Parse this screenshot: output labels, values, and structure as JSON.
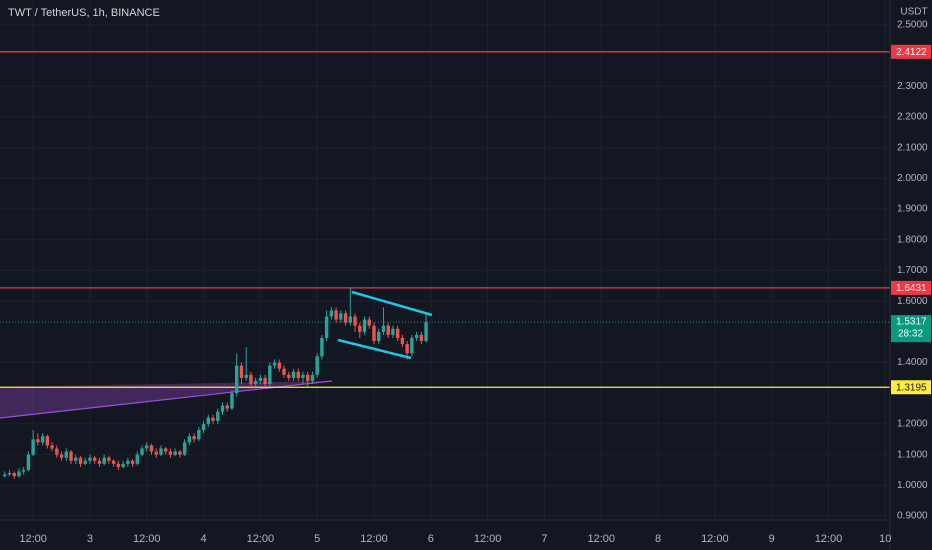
{
  "chart_data": {
    "type": "candlestick",
    "title": "TWT / TetherUS, 1h, BINANCE",
    "currency": "USDT",
    "up_color": "#26a69a",
    "down_color": "#ef5350",
    "grid": true,
    "xlim": [
      5,
      193
    ],
    "ylim": [
      0.887,
      2.581
    ],
    "xticks": [
      {
        "value": 12,
        "label": "12:00"
      },
      {
        "value": 24,
        "label": "3"
      },
      {
        "value": 36,
        "label": "12:00"
      },
      {
        "value": 48,
        "label": "4"
      },
      {
        "value": 60,
        "label": "12:00"
      },
      {
        "value": 72,
        "label": "5"
      },
      {
        "value": 84,
        "label": "12:00"
      },
      {
        "value": 96,
        "label": "6"
      },
      {
        "value": 108,
        "label": "12:00"
      },
      {
        "value": 120,
        "label": "7"
      },
      {
        "value": 132,
        "label": "12:00"
      },
      {
        "value": 144,
        "label": "8"
      },
      {
        "value": 156,
        "label": "12:00"
      },
      {
        "value": 168,
        "label": "9"
      },
      {
        "value": 180,
        "label": "12:00"
      },
      {
        "value": 192,
        "label": "10"
      }
    ],
    "yticks": [
      {
        "value": 2.5,
        "label": "2.5000"
      },
      {
        "value": 2.3,
        "label": "2.3000"
      },
      {
        "value": 2.2,
        "label": "2.2000"
      },
      {
        "value": 2.1,
        "label": "2.1000"
      },
      {
        "value": 2.0,
        "label": "2.0000"
      },
      {
        "value": 1.9,
        "label": "1.9000"
      },
      {
        "value": 1.8,
        "label": "1.8000"
      },
      {
        "value": 1.7,
        "label": "1.7000"
      },
      {
        "value": 1.6,
        "label": "1.6000"
      },
      {
        "value": 1.4,
        "label": "1.4000"
      },
      {
        "value": 1.2,
        "label": "1.2000"
      },
      {
        "value": 1.1,
        "label": "1.1000"
      },
      {
        "value": 1.0,
        "label": "1.0000"
      },
      {
        "value": 0.9,
        "label": "0.9000"
      }
    ],
    "x": [
      6,
      7,
      8,
      9,
      10,
      11,
      12,
      13,
      14,
      15,
      16,
      17,
      18,
      19,
      20,
      21,
      22,
      23,
      24,
      25,
      26,
      27,
      28,
      29,
      30,
      31,
      32,
      33,
      34,
      35,
      36,
      37,
      38,
      39,
      40,
      41,
      42,
      43,
      44,
      45,
      46,
      47,
      48,
      49,
      50,
      51,
      52,
      53,
      54,
      55,
      56,
      57,
      58,
      59,
      60,
      61,
      62,
      63,
      64,
      65,
      66,
      67,
      68,
      69,
      70,
      71,
      72,
      73,
      74,
      75,
      76,
      77,
      78,
      79,
      80,
      81,
      82,
      83,
      84,
      85,
      86,
      87,
      88,
      89,
      90,
      91,
      92,
      93,
      94,
      95
    ],
    "open": [
      1.03,
      1.035,
      1.04,
      1.03,
      1.045,
      1.05,
      1.1,
      1.15,
      1.14,
      1.16,
      1.13,
      1.12,
      1.1,
      1.09,
      1.11,
      1.08,
      1.09,
      1.07,
      1.08,
      1.09,
      1.08,
      1.07,
      1.09,
      1.08,
      1.07,
      1.06,
      1.07,
      1.08,
      1.07,
      1.1,
      1.12,
      1.13,
      1.11,
      1.1,
      1.12,
      1.11,
      1.1,
      1.11,
      1.1,
      1.14,
      1.16,
      1.15,
      1.18,
      1.2,
      1.22,
      1.21,
      1.24,
      1.26,
      1.25,
      1.3,
      1.39,
      1.35,
      1.36,
      1.33,
      1.34,
      1.35,
      1.33,
      1.39,
      1.4,
      1.38,
      1.36,
      1.35,
      1.37,
      1.35,
      1.36,
      1.34,
      1.36,
      1.42,
      1.48,
      1.55,
      1.57,
      1.54,
      1.56,
      1.53,
      1.55,
      1.52,
      1.5,
      1.54,
      1.52,
      1.47,
      1.5,
      1.52,
      1.49,
      1.51,
      1.48,
      1.46,
      1.43,
      1.48,
      1.49,
      1.47
    ],
    "high": [
      1.045,
      1.05,
      1.045,
      1.055,
      1.06,
      1.11,
      1.18,
      1.17,
      1.17,
      1.165,
      1.14,
      1.13,
      1.11,
      1.12,
      1.115,
      1.1,
      1.095,
      1.09,
      1.1,
      1.095,
      1.09,
      1.1,
      1.095,
      1.085,
      1.08,
      1.08,
      1.09,
      1.085,
      1.11,
      1.13,
      1.14,
      1.135,
      1.12,
      1.13,
      1.125,
      1.12,
      1.12,
      1.115,
      1.15,
      1.17,
      1.17,
      1.19,
      1.21,
      1.23,
      1.23,
      1.25,
      1.27,
      1.27,
      1.31,
      1.43,
      1.4,
      1.45,
      1.37,
      1.35,
      1.36,
      1.36,
      1.4,
      1.41,
      1.41,
      1.39,
      1.37,
      1.38,
      1.38,
      1.37,
      1.37,
      1.37,
      1.43,
      1.49,
      1.57,
      1.58,
      1.58,
      1.57,
      1.57,
      1.6431,
      1.56,
      1.53,
      1.55,
      1.55,
      1.53,
      1.51,
      1.58,
      1.53,
      1.52,
      1.52,
      1.49,
      1.47,
      1.49,
      1.5,
      1.5,
      1.56
    ],
    "low": [
      1.025,
      1.03,
      1.02,
      1.025,
      1.035,
      1.045,
      1.095,
      1.13,
      1.13,
      1.12,
      1.11,
      1.09,
      1.08,
      1.08,
      1.07,
      1.07,
      1.06,
      1.065,
      1.07,
      1.07,
      1.06,
      1.065,
      1.07,
      1.06,
      1.05,
      1.055,
      1.06,
      1.06,
      1.065,
      1.095,
      1.11,
      1.1,
      1.09,
      1.095,
      1.1,
      1.09,
      1.095,
      1.09,
      1.095,
      1.13,
      1.14,
      1.145,
      1.17,
      1.19,
      1.2,
      1.2,
      1.23,
      1.24,
      1.245,
      1.29,
      1.33,
      1.34,
      1.32,
      1.32,
      1.33,
      1.32,
      1.32,
      1.38,
      1.37,
      1.35,
      1.34,
      1.34,
      1.34,
      1.33,
      1.32,
      1.33,
      1.35,
      1.41,
      1.47,
      1.54,
      1.53,
      1.53,
      1.52,
      1.52,
      1.5,
      1.48,
      1.49,
      1.51,
      1.46,
      1.46,
      1.49,
      1.48,
      1.48,
      1.47,
      1.45,
      1.41,
      1.42,
      1.47,
      1.46,
      1.465
    ],
    "close": [
      1.035,
      1.04,
      1.03,
      1.045,
      1.05,
      1.1,
      1.15,
      1.14,
      1.16,
      1.13,
      1.12,
      1.1,
      1.09,
      1.11,
      1.08,
      1.09,
      1.07,
      1.08,
      1.09,
      1.08,
      1.07,
      1.09,
      1.08,
      1.07,
      1.06,
      1.07,
      1.08,
      1.07,
      1.1,
      1.12,
      1.13,
      1.11,
      1.1,
      1.12,
      1.11,
      1.1,
      1.11,
      1.1,
      1.14,
      1.16,
      1.15,
      1.18,
      1.2,
      1.22,
      1.21,
      1.24,
      1.26,
      1.25,
      1.3,
      1.39,
      1.35,
      1.36,
      1.33,
      1.34,
      1.35,
      1.33,
      1.39,
      1.4,
      1.38,
      1.36,
      1.35,
      1.37,
      1.35,
      1.36,
      1.34,
      1.36,
      1.42,
      1.48,
      1.55,
      1.57,
      1.54,
      1.56,
      1.53,
      1.55,
      1.52,
      1.5,
      1.54,
      1.52,
      1.47,
      1.5,
      1.52,
      1.49,
      1.51,
      1.48,
      1.46,
      1.43,
      1.48,
      1.49,
      1.47,
      1.5317
    ],
    "hlines": [
      {
        "value": 2.4122,
        "color": "#f23645"
      },
      {
        "value": 1.6431,
        "color": "#f23645"
      },
      {
        "value": 1.3195,
        "color": "#ffeb3b"
      }
    ],
    "last_price": {
      "value": 1.5317,
      "countdown": "28:32",
      "color": "#089981"
    }
  }
}
